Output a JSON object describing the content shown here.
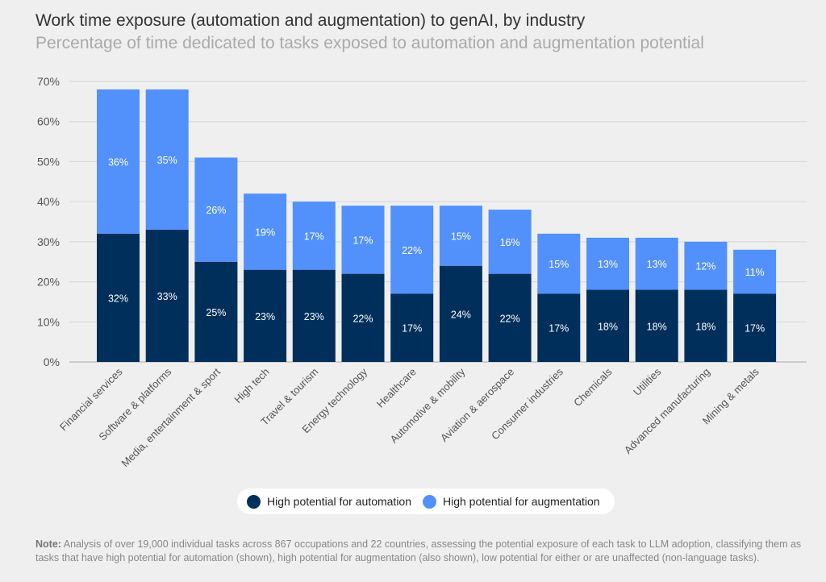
{
  "title": "Work time exposure (automation and augmentation) to genAI, by industry",
  "subtitle": "Percentage of time dedicated to tasks exposed to automation and augmentation potential",
  "colors": {
    "automation": "#002f5b",
    "augmentation": "#5291fb",
    "grid": "#d6d6d6",
    "background": "#efefef"
  },
  "chart_data": {
    "type": "bar",
    "stacked": true,
    "categories": [
      "Financial services",
      "Software & platforms",
      "Media, entertainment & sport",
      "High tech",
      "Travel & tourism",
      "Energy technology",
      "Healthcare",
      "Automotive & mobility",
      "Aviation & aerospace",
      "Consumer industries",
      "Chemicals",
      "Utilities",
      "Advanced manufacturing",
      "Mining & metals"
    ],
    "series": [
      {
        "name": "High potential for automation",
        "values": [
          32,
          33,
          25,
          23,
          23,
          22,
          17,
          24,
          22,
          17,
          18,
          18,
          18,
          17
        ],
        "labels": [
          "32%",
          "33%",
          "25%",
          "23%",
          "23%",
          "22%",
          "17%",
          "24%",
          "22%",
          "17%",
          "18%",
          "18%",
          "18%",
          "17%"
        ]
      },
      {
        "name": "High potential for augmentation",
        "values": [
          36,
          35,
          26,
          19,
          17,
          17,
          22,
          15,
          16,
          15,
          13,
          13,
          12,
          11
        ],
        "labels": [
          "36%",
          "35%",
          "26%",
          "19%",
          "17%",
          "17%",
          "22%",
          "15%",
          "16%",
          "15%",
          "13%",
          "13%",
          "12%",
          "11%"
        ]
      }
    ],
    "ylim": [
      0,
      70
    ],
    "yticks": [
      "0%",
      "10%",
      "20%",
      "30%",
      "40%",
      "50%",
      "60%",
      "70%"
    ],
    "grid": true,
    "legend": "bottom"
  },
  "note": {
    "label": "Note:",
    "text": " Analysis of over 19,000 individual tasks across 867 occupations and 22 countries, assessing the potential exposure of each task to LLM adoption, classifying them as tasks that have high potential for automation (shown), high potential for augmentation (also shown), low potential for either or are unaffected (non-language tasks)."
  }
}
